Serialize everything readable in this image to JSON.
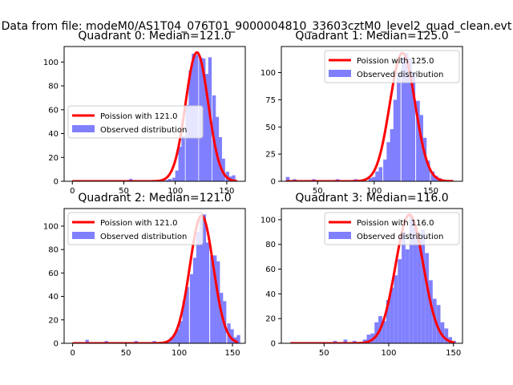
{
  "suptitle": "Data from file: modeM0/AS1T04_076T01_9000004810_33603cztM0_level2_quad_clean.evt",
  "legend_labels": {
    "fit": "Poission with",
    "observed": "Observed distribution"
  },
  "colors": {
    "fit": "#ff0000",
    "hist": "#8080ff",
    "axes": "#000000"
  },
  "chart_data": [
    {
      "type": "bar",
      "title": "Quadrant 0: Median=121.0",
      "median": 121.0,
      "fit_label": "Poission with 121.0",
      "legend_position": "center-left",
      "xlim": [
        -8,
        168
      ],
      "ylim": [
        0,
        113
      ],
      "xticks": [
        0,
        50,
        100,
        150
      ],
      "yticks": [
        0,
        20,
        40,
        60,
        80,
        100
      ],
      "bin_width": 3.4,
      "hist": [
        [
          55,
          2
        ],
        [
          76,
          1
        ],
        [
          90,
          1
        ],
        [
          93,
          2
        ],
        [
          97,
          3
        ],
        [
          100,
          9
        ],
        [
          103,
          29
        ],
        [
          106,
          38
        ],
        [
          110,
          64
        ],
        [
          113,
          93
        ],
        [
          116,
          107
        ],
        [
          119,
          106
        ],
        [
          123,
          104
        ],
        [
          126,
          103
        ],
        [
          129,
          90
        ],
        [
          132,
          104
        ],
        [
          136,
          72
        ],
        [
          139,
          54
        ],
        [
          142,
          37
        ],
        [
          145,
          19
        ],
        [
          149,
          8
        ],
        [
          152,
          4
        ],
        [
          155,
          5
        ]
      ],
      "fit_lambda": 121.0,
      "fit_peak": 108,
      "fit_range": [
        0,
        160
      ]
    },
    {
      "type": "bar",
      "title": "Quadrant 1: Median=125.0",
      "median": 125.0,
      "fit_label": "Poission with 125.0",
      "legend_position": "top-right",
      "xlim": [
        18,
        178
      ],
      "ylim": [
        0,
        124
      ],
      "xticks": [
        50,
        100,
        150
      ],
      "yticks": [
        0,
        25,
        50,
        75,
        100
      ],
      "bin_width": 3.3,
      "hist": [
        [
          22,
          4
        ],
        [
          28,
          2
        ],
        [
          35,
          1
        ],
        [
          45,
          2
        ],
        [
          52,
          1
        ],
        [
          58,
          1
        ],
        [
          66,
          2
        ],
        [
          75,
          1
        ],
        [
          82,
          2
        ],
        [
          89,
          1
        ],
        [
          95,
          3
        ],
        [
          98,
          4
        ],
        [
          101,
          9
        ],
        [
          104,
          13
        ],
        [
          108,
          20
        ],
        [
          111,
          36
        ],
        [
          114,
          48
        ],
        [
          117,
          75
        ],
        [
          120,
          100
        ],
        [
          124,
          114
        ],
        [
          127,
          118
        ],
        [
          130,
          113
        ],
        [
          133,
          100
        ],
        [
          137,
          74
        ],
        [
          140,
          61
        ],
        [
          143,
          40
        ],
        [
          146,
          19
        ],
        [
          150,
          9
        ],
        [
          153,
          5
        ],
        [
          156,
          3
        ]
      ],
      "fit_lambda": 125.0,
      "fit_peak": 118,
      "fit_range": [
        22,
        170
      ]
    },
    {
      "type": "bar",
      "title": "Quadrant 2: Median=121.0",
      "median": 121.0,
      "fit_label": "Poission with 121.0",
      "legend_position": "top-left",
      "xlim": [
        -8,
        162
      ],
      "ylim": [
        0,
        115
      ],
      "xticks": [
        0,
        50,
        100,
        150
      ],
      "yticks": [
        0,
        20,
        40,
        60,
        80,
        100
      ],
      "bin_width": 3.2,
      "hist": [
        [
          0,
          1
        ],
        [
          12,
          3
        ],
        [
          22,
          1
        ],
        [
          30,
          2
        ],
        [
          38,
          1
        ],
        [
          50,
          1
        ],
        [
          58,
          2
        ],
        [
          62,
          1
        ],
        [
          68,
          1
        ],
        [
          75,
          2
        ],
        [
          80,
          1
        ],
        [
          88,
          2
        ],
        [
          91,
          5
        ],
        [
          94,
          8
        ],
        [
          97,
          12
        ],
        [
          100,
          19
        ],
        [
          103,
          36
        ],
        [
          106,
          48
        ],
        [
          110,
          59
        ],
        [
          113,
          73
        ],
        [
          116,
          95
        ],
        [
          119,
          107
        ],
        [
          122,
          110
        ],
        [
          125,
          86
        ],
        [
          129,
          75
        ],
        [
          132,
          75
        ],
        [
          135,
          70
        ],
        [
          138,
          43
        ],
        [
          141,
          36
        ],
        [
          145,
          17
        ],
        [
          148,
          12
        ],
        [
          151,
          5
        ],
        [
          154,
          7
        ]
      ],
      "fit_lambda": 121.0,
      "fit_peak": 109,
      "fit_range": [
        0,
        155
      ]
    },
    {
      "type": "bar",
      "title": "Quadrant 3: Median=116.0",
      "median": 116.0,
      "fit_label": "Poission with 116.0",
      "legend_position": "top-right",
      "xlim": [
        17,
        157
      ],
      "ylim": [
        0,
        109
      ],
      "xticks": [
        50,
        100,
        150
      ],
      "yticks": [
        0,
        20,
        40,
        60,
        80,
        100
      ],
      "bin_width": 2.95,
      "hist": [
        [
          24,
          1
        ],
        [
          35,
          1
        ],
        [
          42,
          1
        ],
        [
          50,
          1
        ],
        [
          57,
          2
        ],
        [
          62,
          1
        ],
        [
          65,
          3
        ],
        [
          72,
          2
        ],
        [
          80,
          3
        ],
        [
          83,
          7
        ],
        [
          86,
          8
        ],
        [
          89,
          17
        ],
        [
          92,
          22
        ],
        [
          95,
          18
        ],
        [
          98,
          35
        ],
        [
          101,
          45
        ],
        [
          104,
          55
        ],
        [
          107,
          68
        ],
        [
          110,
          90
        ],
        [
          113,
          76
        ],
        [
          116,
          103
        ],
        [
          119,
          94
        ],
        [
          122,
          84
        ],
        [
          125,
          92
        ],
        [
          128,
          73
        ],
        [
          131,
          51
        ],
        [
          134,
          36
        ],
        [
          137,
          31
        ],
        [
          140,
          17
        ],
        [
          143,
          12
        ],
        [
          146,
          5
        ],
        [
          149,
          2
        ]
      ],
      "fit_lambda": 116.0,
      "fit_peak": 104,
      "fit_range": [
        24,
        151
      ]
    }
  ]
}
